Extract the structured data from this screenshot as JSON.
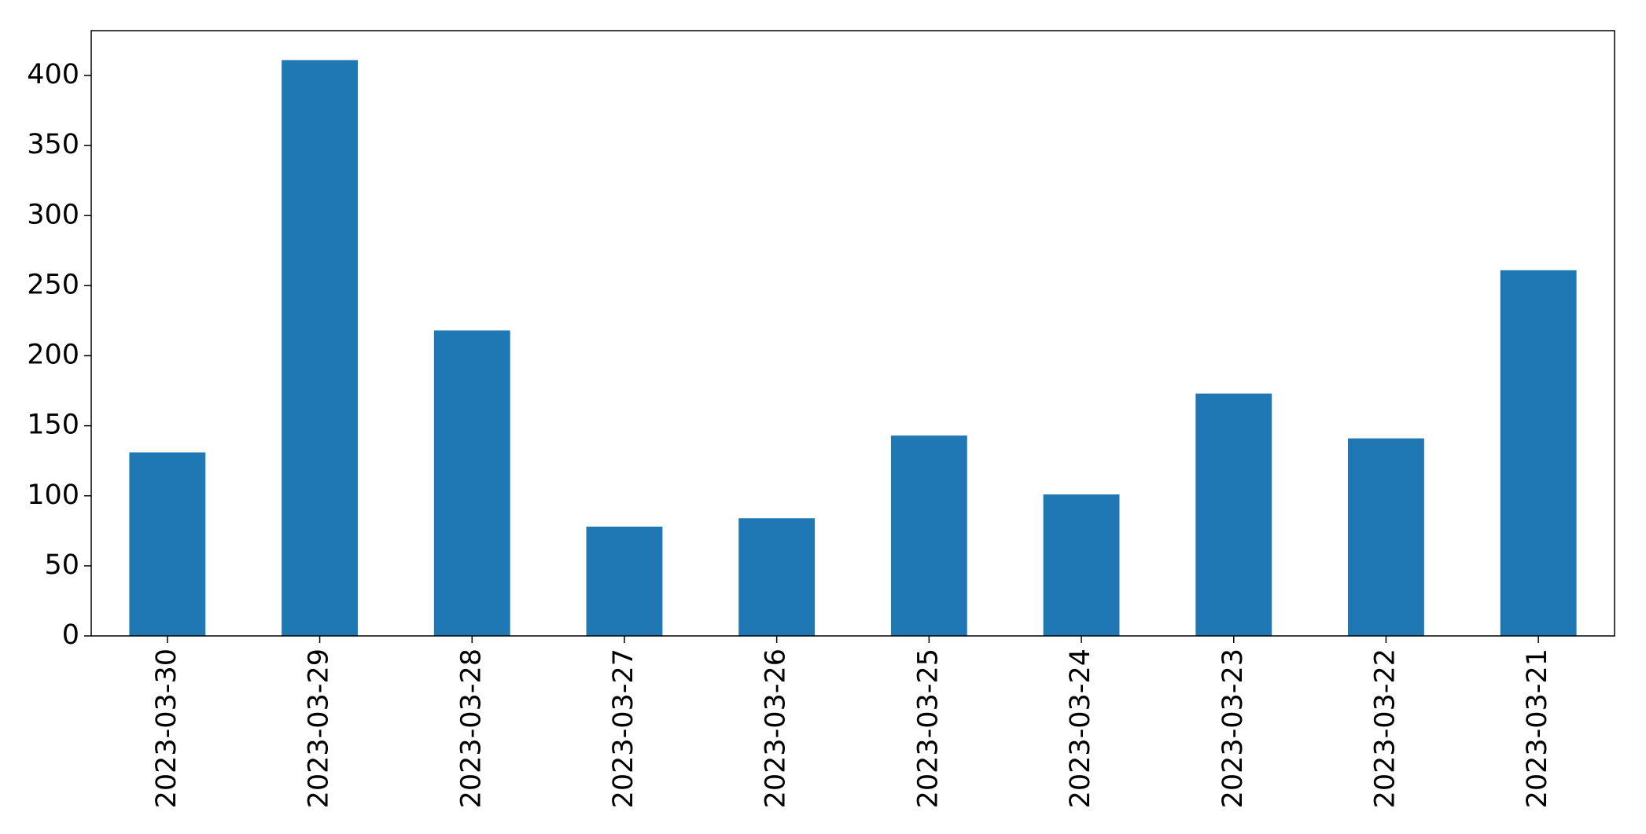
{
  "chart_data": {
    "type": "bar",
    "categories": [
      "2023-03-30",
      "2023-03-29",
      "2023-03-28",
      "2023-03-27",
      "2023-03-26",
      "2023-03-25",
      "2023-03-24",
      "2023-03-23",
      "2023-03-22",
      "2023-03-21"
    ],
    "values": [
      131,
      411,
      218,
      78,
      84,
      143,
      101,
      173,
      141,
      261
    ],
    "color": "#1f77b4",
    "ylim": [
      0,
      432
    ],
    "yticks": [
      0,
      50,
      100,
      150,
      200,
      250,
      300,
      350,
      400
    ],
    "grid": false
  }
}
